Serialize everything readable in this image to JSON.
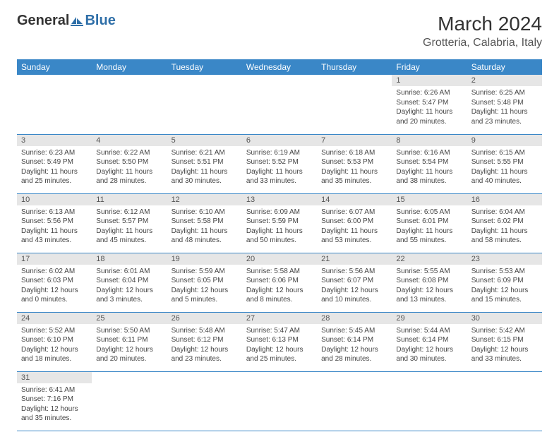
{
  "logo": {
    "text1": "General",
    "text2": "Blue"
  },
  "title": "March 2024",
  "location": "Grotteria, Calabria, Italy",
  "colors": {
    "header_bg": "#3a87c7",
    "header_fg": "#ffffff",
    "daynum_bg": "#e6e6e6",
    "border": "#3a87c7",
    "logo_blue": "#2f6fa8"
  },
  "day_headers": [
    "Sunday",
    "Monday",
    "Tuesday",
    "Wednesday",
    "Thursday",
    "Friday",
    "Saturday"
  ],
  "weeks": [
    [
      null,
      null,
      null,
      null,
      null,
      {
        "n": "1",
        "sunrise": "6:26 AM",
        "sunset": "5:47 PM",
        "daylight": "11 hours and 20 minutes."
      },
      {
        "n": "2",
        "sunrise": "6:25 AM",
        "sunset": "5:48 PM",
        "daylight": "11 hours and 23 minutes."
      }
    ],
    [
      {
        "n": "3",
        "sunrise": "6:23 AM",
        "sunset": "5:49 PM",
        "daylight": "11 hours and 25 minutes."
      },
      {
        "n": "4",
        "sunrise": "6:22 AM",
        "sunset": "5:50 PM",
        "daylight": "11 hours and 28 minutes."
      },
      {
        "n": "5",
        "sunrise": "6:21 AM",
        "sunset": "5:51 PM",
        "daylight": "11 hours and 30 minutes."
      },
      {
        "n": "6",
        "sunrise": "6:19 AM",
        "sunset": "5:52 PM",
        "daylight": "11 hours and 33 minutes."
      },
      {
        "n": "7",
        "sunrise": "6:18 AM",
        "sunset": "5:53 PM",
        "daylight": "11 hours and 35 minutes."
      },
      {
        "n": "8",
        "sunrise": "6:16 AM",
        "sunset": "5:54 PM",
        "daylight": "11 hours and 38 minutes."
      },
      {
        "n": "9",
        "sunrise": "6:15 AM",
        "sunset": "5:55 PM",
        "daylight": "11 hours and 40 minutes."
      }
    ],
    [
      {
        "n": "10",
        "sunrise": "6:13 AM",
        "sunset": "5:56 PM",
        "daylight": "11 hours and 43 minutes."
      },
      {
        "n": "11",
        "sunrise": "6:12 AM",
        "sunset": "5:57 PM",
        "daylight": "11 hours and 45 minutes."
      },
      {
        "n": "12",
        "sunrise": "6:10 AM",
        "sunset": "5:58 PM",
        "daylight": "11 hours and 48 minutes."
      },
      {
        "n": "13",
        "sunrise": "6:09 AM",
        "sunset": "5:59 PM",
        "daylight": "11 hours and 50 minutes."
      },
      {
        "n": "14",
        "sunrise": "6:07 AM",
        "sunset": "6:00 PM",
        "daylight": "11 hours and 53 minutes."
      },
      {
        "n": "15",
        "sunrise": "6:05 AM",
        "sunset": "6:01 PM",
        "daylight": "11 hours and 55 minutes."
      },
      {
        "n": "16",
        "sunrise": "6:04 AM",
        "sunset": "6:02 PM",
        "daylight": "11 hours and 58 minutes."
      }
    ],
    [
      {
        "n": "17",
        "sunrise": "6:02 AM",
        "sunset": "6:03 PM",
        "daylight": "12 hours and 0 minutes."
      },
      {
        "n": "18",
        "sunrise": "6:01 AM",
        "sunset": "6:04 PM",
        "daylight": "12 hours and 3 minutes."
      },
      {
        "n": "19",
        "sunrise": "5:59 AM",
        "sunset": "6:05 PM",
        "daylight": "12 hours and 5 minutes."
      },
      {
        "n": "20",
        "sunrise": "5:58 AM",
        "sunset": "6:06 PM",
        "daylight": "12 hours and 8 minutes."
      },
      {
        "n": "21",
        "sunrise": "5:56 AM",
        "sunset": "6:07 PM",
        "daylight": "12 hours and 10 minutes."
      },
      {
        "n": "22",
        "sunrise": "5:55 AM",
        "sunset": "6:08 PM",
        "daylight": "12 hours and 13 minutes."
      },
      {
        "n": "23",
        "sunrise": "5:53 AM",
        "sunset": "6:09 PM",
        "daylight": "12 hours and 15 minutes."
      }
    ],
    [
      {
        "n": "24",
        "sunrise": "5:52 AM",
        "sunset": "6:10 PM",
        "daylight": "12 hours and 18 minutes."
      },
      {
        "n": "25",
        "sunrise": "5:50 AM",
        "sunset": "6:11 PM",
        "daylight": "12 hours and 20 minutes."
      },
      {
        "n": "26",
        "sunrise": "5:48 AM",
        "sunset": "6:12 PM",
        "daylight": "12 hours and 23 minutes."
      },
      {
        "n": "27",
        "sunrise": "5:47 AM",
        "sunset": "6:13 PM",
        "daylight": "12 hours and 25 minutes."
      },
      {
        "n": "28",
        "sunrise": "5:45 AM",
        "sunset": "6:14 PM",
        "daylight": "12 hours and 28 minutes."
      },
      {
        "n": "29",
        "sunrise": "5:44 AM",
        "sunset": "6:14 PM",
        "daylight": "12 hours and 30 minutes."
      },
      {
        "n": "30",
        "sunrise": "5:42 AM",
        "sunset": "6:15 PM",
        "daylight": "12 hours and 33 minutes."
      }
    ],
    [
      {
        "n": "31",
        "sunrise": "6:41 AM",
        "sunset": "7:16 PM",
        "daylight": "12 hours and 35 minutes."
      },
      null,
      null,
      null,
      null,
      null,
      null
    ]
  ],
  "labels": {
    "sunrise": "Sunrise: ",
    "sunset": "Sunset: ",
    "daylight": "Daylight: "
  }
}
